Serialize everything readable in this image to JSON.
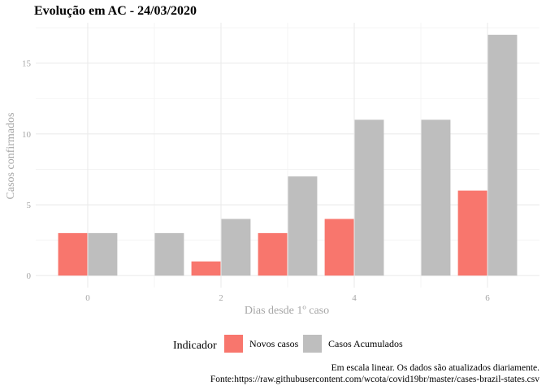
{
  "chart_data": {
    "type": "bar",
    "title": "Evolução em AC  -  24/03/2020",
    "xlabel": "Dias desde 1º caso",
    "ylabel": "Casos confirmados",
    "x": [
      0,
      1,
      2,
      3,
      4,
      5,
      6
    ],
    "x_ticks": [
      0,
      2,
      4,
      6
    ],
    "xlim": [
      -0.78,
      6.78
    ],
    "y_ticks": [
      0,
      5,
      10,
      15
    ],
    "ylim": [
      -0.85,
      17.85
    ],
    "grid": true,
    "legend_position": "bottom",
    "legend_title": "Indicador",
    "series": [
      {
        "name": "Novos casos",
        "color": "#F8766D",
        "values": [
          3,
          0,
          1,
          3,
          4,
          0,
          6
        ]
      },
      {
        "name": "Casos Acumulados",
        "color": "#BEBEBE",
        "values": [
          3,
          3,
          4,
          7,
          11,
          11,
          17
        ]
      }
    ],
    "caption": [
      "Em escala linear. Os dados são atualizados diariamente.",
      "Fonte:https://raw.githubusercontent.com/wcota/covid19br/master/cases-brazil-states.csv"
    ]
  }
}
